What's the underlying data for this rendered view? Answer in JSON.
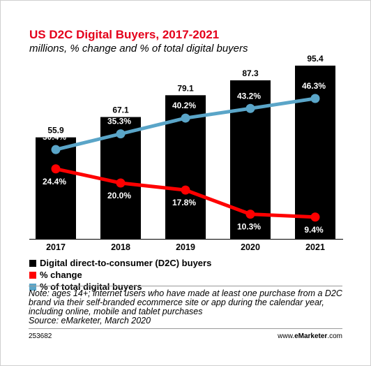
{
  "chart_data": {
    "type": "bar",
    "title": "US D2C Digital Buyers, 2017-2021",
    "subtitle": "millions, % change and % of total digital buyers",
    "categories": [
      "2017",
      "2018",
      "2019",
      "2020",
      "2021"
    ],
    "bar_series": {
      "name": "Digital direct-to-consumer (D2C) buyers",
      "values": [
        55.9,
        67.1,
        79.1,
        87.3,
        95.4
      ],
      "labels": [
        "55.9",
        "67.1",
        "79.1",
        "87.3",
        "95.4"
      ],
      "color": "#000000",
      "ylim": [
        0,
        100
      ]
    },
    "line_series": [
      {
        "name": "% change",
        "values": [
          24.4,
          20.0,
          17.8,
          10.3,
          9.4
        ],
        "labels": [
          "24.4%",
          "20.0%",
          "17.8%",
          "10.3%",
          "9.4%"
        ],
        "color": "#ff0000"
      },
      {
        "name": "% of total digital buyers",
        "values": [
          30.4,
          35.3,
          40.2,
          43.2,
          46.3
        ],
        "labels": [
          "30.4%",
          "35.3%",
          "40.2%",
          "43.2%",
          "46.3%"
        ],
        "color": "#5aa5c8"
      }
    ],
    "legend_position": "bottom-left",
    "grid": false
  },
  "note": "Note: ages 14+; internet users who have made at least one purchase from a D2C brand via their self-branded ecommerce site or app during the calendar year, including online, mobile and tablet purchases",
  "source": "Source: eMarketer, March 2020",
  "chart_id": "253682",
  "brand": {
    "prefix": "www.",
    "name": "eMarketer",
    "suffix": ".com"
  }
}
